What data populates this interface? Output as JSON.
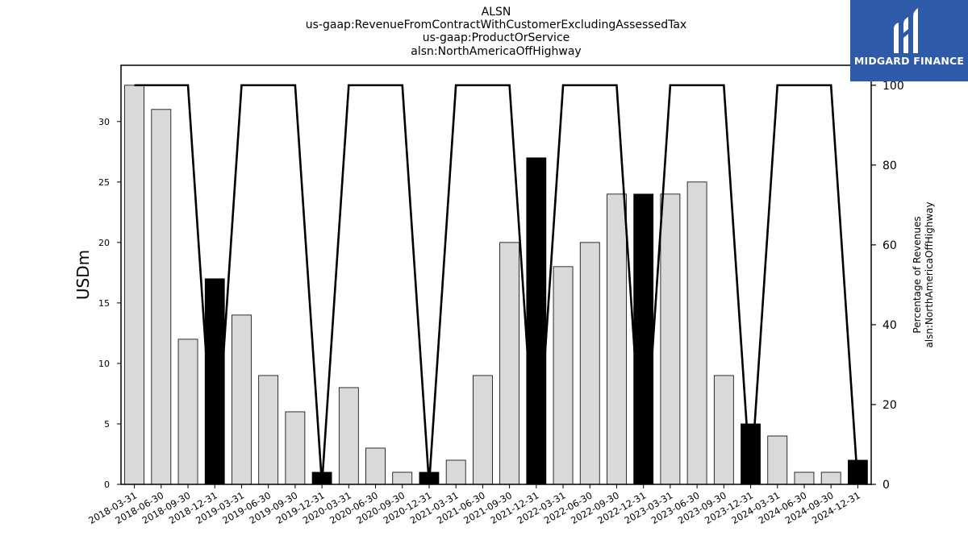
{
  "chart_data": {
    "type": "bar",
    "title_lines": [
      "ALSN",
      "us-gaap:RevenueFromContractWithCustomerExcludingAssessedTax",
      "us-gaap:ProductOrService",
      "alsn:NorthAmericaOffHighway"
    ],
    "categories": [
      "2018-03-31",
      "2018-06-30",
      "2018-09-30",
      "2018-12-31",
      "2019-03-31",
      "2019-06-30",
      "2019-09-30",
      "2019-12-31",
      "2020-03-31",
      "2020-06-30",
      "2020-09-30",
      "2020-12-31",
      "2021-03-31",
      "2021-06-30",
      "2021-09-30",
      "2021-12-31",
      "2022-03-31",
      "2022-06-30",
      "2022-09-30",
      "2022-12-31",
      "2023-03-31",
      "2023-06-30",
      "2023-09-30",
      "2023-12-31",
      "2024-03-31",
      "2024-06-30",
      "2024-09-30",
      "2024-12-31"
    ],
    "values": [
      33,
      31,
      12,
      17,
      14,
      9,
      6,
      1,
      8,
      3,
      1,
      1,
      2,
      9,
      20,
      27,
      18,
      20,
      24,
      24,
      24,
      25,
      9,
      5,
      4,
      1,
      1,
      2
    ],
    "highlight": [
      false,
      false,
      false,
      true,
      false,
      false,
      false,
      true,
      false,
      false,
      false,
      true,
      false,
      false,
      false,
      true,
      false,
      false,
      false,
      true,
      false,
      false,
      false,
      true,
      false,
      false,
      false,
      true
    ],
    "percentage_line": [
      100,
      100,
      100,
      0,
      100,
      100,
      100,
      0,
      100,
      100,
      100,
      0,
      100,
      100,
      100,
      0,
      100,
      100,
      100,
      0,
      100,
      100,
      100,
      0,
      100,
      100,
      100,
      0
    ],
    "ylabel": "USDm",
    "y2label_lines": [
      "Percentage of Revenues",
      "alsn:NorthAmericaOffHighway"
    ],
    "ylim": [
      0,
      34.65
    ],
    "y2lim": [
      0,
      105
    ],
    "yticks": [
      0,
      5,
      10,
      15,
      20,
      25,
      30
    ],
    "y2ticks": [
      0,
      20,
      40,
      60,
      80,
      100
    ],
    "bar_color": "#d9d9d9",
    "highlight_color": "#000000",
    "line_color": "#000000",
    "grid": false
  },
  "logo": {
    "text": "MIDGARD FINANCE",
    "background": "#2e5aa8"
  }
}
